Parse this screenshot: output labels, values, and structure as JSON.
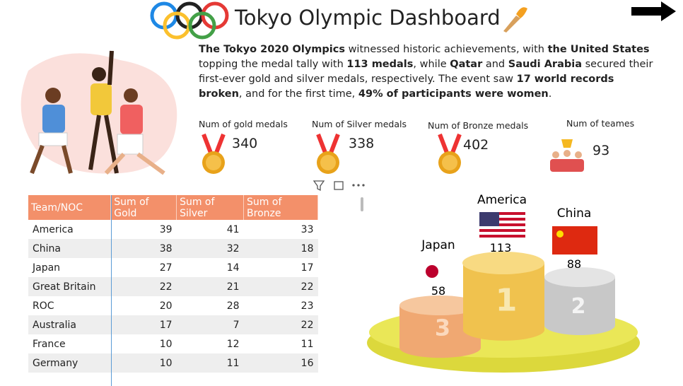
{
  "header": {
    "title": "Tokyo Olympic Dashboard"
  },
  "description": {
    "segments": [
      {
        "text": "The Tokyo 2020 Olympics",
        "bold": true
      },
      {
        "text": " witnessed historic achievements, with ",
        "bold": false
      },
      {
        "text": "the United States",
        "bold": true
      },
      {
        "text": " topping the medal tally with ",
        "bold": false
      },
      {
        "text": "113 medals",
        "bold": true
      },
      {
        "text": ", while ",
        "bold": false
      },
      {
        "text": "Qatar",
        "bold": true
      },
      {
        "text": " and ",
        "bold": false
      },
      {
        "text": "Saudi Arabia",
        "bold": true
      },
      {
        "text": " secured their first-ever gold and silver medals, respectively. The event saw ",
        "bold": false
      },
      {
        "text": "17 world records broken",
        "bold": true
      },
      {
        "text": ", and for the first time, ",
        "bold": false
      },
      {
        "text": "49% of participants were women",
        "bold": true
      },
      {
        "text": ".",
        "bold": false
      }
    ]
  },
  "kpis": [
    {
      "label": "Num of gold medals",
      "value": 340,
      "color": "#e8a21a"
    },
    {
      "label": "Num of Silver medals",
      "value": 338,
      "color": "#e8a21a"
    },
    {
      "label": "Num of Bronze medals",
      "value": 402,
      "color": "#e8a21a"
    },
    {
      "label": "Num of teames",
      "value": 93
    }
  ],
  "table": {
    "columns": [
      "Team/NOC",
      "Sum of Gold",
      "Sum of Silver",
      "Sum of Bronze"
    ],
    "rows": [
      [
        "America",
        39,
        41,
        33
      ],
      [
        "China",
        38,
        32,
        18
      ],
      [
        "Japan",
        27,
        14,
        17
      ],
      [
        "Great Britain",
        22,
        21,
        22
      ],
      [
        "ROC",
        20,
        28,
        23
      ],
      [
        "Australia",
        17,
        7,
        22
      ],
      [
        "France",
        10,
        12,
        11
      ],
      [
        "Germany",
        10,
        11,
        16
      ]
    ]
  },
  "podium": [
    {
      "country": "America",
      "total": 113,
      "rank": 1
    },
    {
      "country": "China",
      "total": 88,
      "rank": 2
    },
    {
      "country": "Japan",
      "total": 58,
      "rank": 3
    }
  ]
}
